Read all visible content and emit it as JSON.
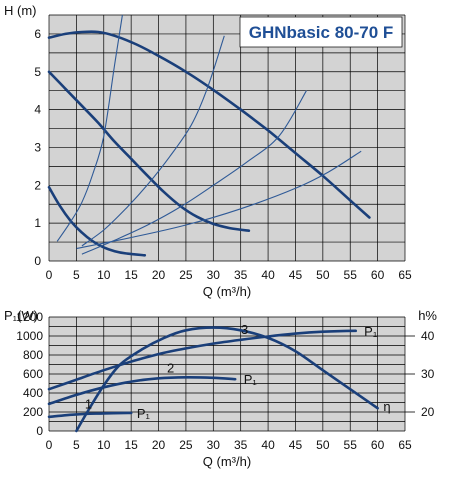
{
  "chart_data": [
    {
      "type": "line",
      "title": "GHNbasic 80-70 F",
      "xlabel": "Q (m³/h)",
      "ylabel": "H (m)",
      "xlim": [
        0,
        65
      ],
      "ylim": [
        0,
        6.5
      ],
      "xticks": [
        "0",
        "5",
        "10",
        "15",
        "20",
        "25",
        "30",
        "35",
        "40",
        "45",
        "50",
        "55",
        "60",
        "65"
      ],
      "yticks": [
        "0",
        "1",
        "2",
        "3",
        "4",
        "5",
        "6"
      ],
      "grid": true,
      "series": [
        {
          "key": "max",
          "points": [
            [
              0,
              5.9
            ],
            [
              3,
              6.0
            ],
            [
              6,
              6.05
            ],
            [
              9,
              6.05
            ],
            [
              12,
              5.95
            ],
            [
              16,
              5.72
            ],
            [
              20,
              5.42
            ],
            [
              25,
              5.0
            ],
            [
              30,
              4.52
            ],
            [
              35,
              4.0
            ],
            [
              40,
              3.45
            ],
            [
              45,
              2.85
            ],
            [
              50,
              2.25
            ],
            [
              55,
              1.6
            ],
            [
              58.5,
              1.15
            ]
          ]
        },
        {
          "key": "mid",
          "points": [
            [
              0,
              5.0
            ],
            [
              3,
              4.55
            ],
            [
              6,
              4.1
            ],
            [
              9,
              3.65
            ],
            [
              12,
              3.15
            ],
            [
              15,
              2.7
            ],
            [
              18,
              2.25
            ],
            [
              21,
              1.82
            ],
            [
              24,
              1.45
            ],
            [
              27,
              1.17
            ],
            [
              30,
              0.98
            ],
            [
              33,
              0.87
            ],
            [
              36.5,
              0.8
            ]
          ]
        },
        {
          "key": "min",
          "points": [
            [
              0,
              1.95
            ],
            [
              2,
              1.45
            ],
            [
              4,
              1.05
            ],
            [
              6,
              0.75
            ],
            [
              8,
              0.52
            ],
            [
              10,
              0.36
            ],
            [
              12,
              0.26
            ],
            [
              14,
              0.2
            ],
            [
              17.5,
              0.15
            ]
          ]
        },
        {
          "key": "system",
          "points": [
            [
              1.5,
              0.52
            ],
            [
              4,
              1.05
            ],
            [
              6,
              1.55
            ],
            [
              8,
              2.3
            ],
            [
              10,
              3.3
            ],
            [
              12,
              5.2
            ],
            [
              13.4,
              6.5
            ]
          ]
        },
        {
          "key": "system",
          "points": [
            [
              6,
              0.4
            ],
            [
              10,
              0.82
            ],
            [
              14,
              1.38
            ],
            [
              18,
              2.02
            ],
            [
              22,
              2.75
            ],
            [
              26,
              3.6
            ],
            [
              29,
              4.6
            ],
            [
              32,
              5.95
            ]
          ]
        },
        {
          "key": "system",
          "points": [
            [
              6,
              0.18
            ],
            [
              12,
              0.55
            ],
            [
              18,
              0.95
            ],
            [
              24,
              1.43
            ],
            [
              30,
              2
            ],
            [
              36,
              2.6
            ],
            [
              42,
              3.3
            ],
            [
              47,
              4.5
            ]
          ]
        },
        {
          "key": "system",
          "points": [
            [
              5,
              0.33
            ],
            [
              15,
              0.62
            ],
            [
              25,
              0.95
            ],
            [
              35,
              1.38
            ],
            [
              45,
              1.92
            ],
            [
              51,
              2.35
            ],
            [
              57,
              2.9
            ]
          ]
        }
      ]
    },
    {
      "type": "line",
      "xlabel": "Q (m³/h)",
      "ylabel": "P₁(W)",
      "y2label": "h%",
      "xlim": [
        0,
        65
      ],
      "ylim": [
        0,
        1200
      ],
      "y2lim": [
        15,
        45
      ],
      "xticks": [
        "0",
        "5",
        "10",
        "15",
        "20",
        "25",
        "30",
        "35",
        "40",
        "45",
        "50",
        "55",
        "60",
        "65"
      ],
      "yticks": [
        "0",
        "200",
        "400",
        "600",
        "800",
        "1000",
        "1200"
      ],
      "y2ticks": [
        "20",
        "30",
        "40"
      ],
      "grid": true,
      "series": [
        {
          "key": "power",
          "axis": "left",
          "points": [
            [
              0,
              440
            ],
            [
              5,
              540
            ],
            [
              10,
              640
            ],
            [
              15,
              730
            ],
            [
              20,
              810
            ],
            [
              25,
              870
            ],
            [
              30,
              920
            ],
            [
              35,
              960
            ],
            [
              40,
              995
            ],
            [
              45,
              1025
            ],
            [
              50,
              1045
            ],
            [
              56,
              1055
            ]
          ]
        },
        {
          "key": "power",
          "axis": "left",
          "points": [
            [
              0,
              285
            ],
            [
              5,
              380
            ],
            [
              10,
              460
            ],
            [
              15,
              520
            ],
            [
              20,
              555
            ],
            [
              25,
              565
            ],
            [
              30,
              560
            ],
            [
              34,
              545
            ]
          ]
        },
        {
          "key": "power",
          "axis": "left",
          "points": [
            [
              0,
              150
            ],
            [
              5,
              175
            ],
            [
              10,
              185
            ],
            [
              15,
              190
            ]
          ]
        },
        {
          "key": "efficiency",
          "axis": "right",
          "points": [
            [
              5,
              15
            ],
            [
              7,
              20
            ],
            [
              10,
              27
            ],
            [
              13,
              32.5
            ],
            [
              17,
              36.5
            ],
            [
              21,
              39.5
            ],
            [
              25,
              41.5
            ],
            [
              30,
              42.2
            ],
            [
              35,
              41.5
            ],
            [
              40,
              39.5
            ],
            [
              45,
              36
            ],
            [
              50,
              31
            ],
            [
              55,
              26
            ],
            [
              60,
              21
            ]
          ]
        }
      ],
      "annotations": [
        {
          "text": "P₁",
          "x": 57,
          "y": 1055
        },
        {
          "text": "P₁",
          "x": 35,
          "y": 545
        },
        {
          "text": "P₁",
          "x": 15.5,
          "y": 190
        },
        {
          "text": "η",
          "x": 60.5,
          "y": 265
        },
        {
          "text": "1",
          "x": 6,
          "y": 290
        },
        {
          "text": "2",
          "x": 21,
          "y": 670
        },
        {
          "text": "3",
          "x": 34.5,
          "y": 1075
        }
      ]
    }
  ]
}
